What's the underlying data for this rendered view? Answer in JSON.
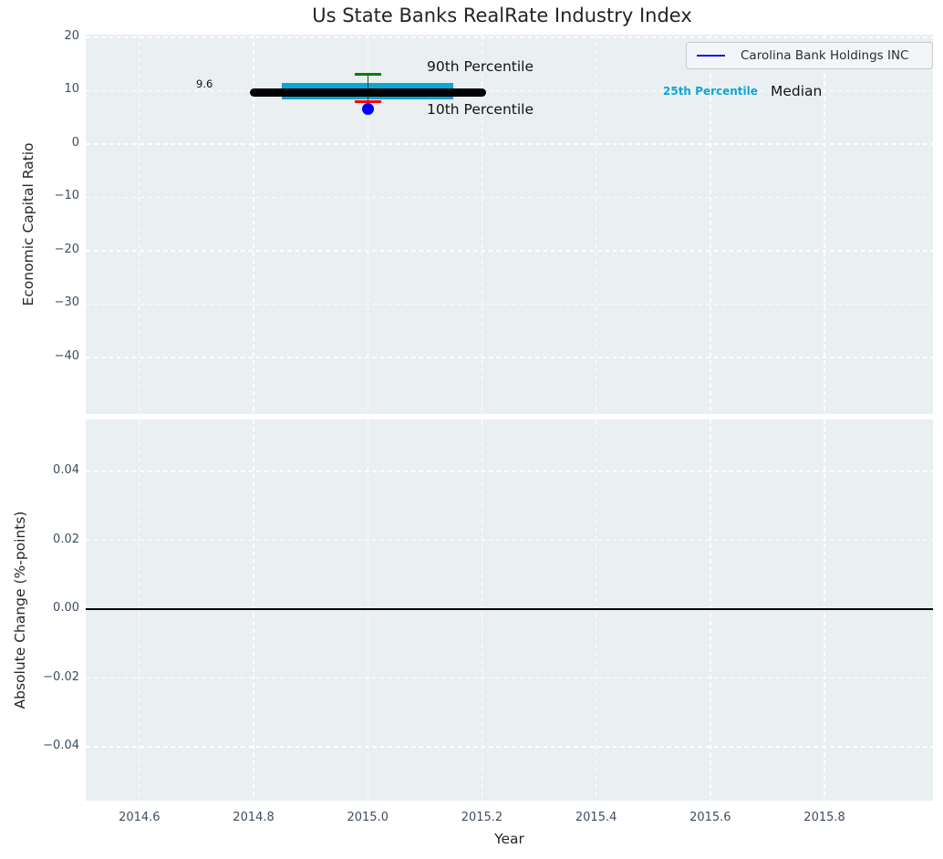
{
  "figure": {
    "title": "Us State Banks RealRate Industry Index",
    "plot_background": "#eaeff1",
    "grid_color": "#ffffff",
    "tick_label_color": "#3e4d62",
    "text_color": "#262626"
  },
  "legend": {
    "label": "Carolina Bank Holdings INC",
    "line_color": "#0f0fe8",
    "position": "upper-right"
  },
  "x_axis": {
    "label": "Year",
    "tick_values": [
      2014.6,
      2014.8,
      2015.0,
      2015.2,
      2015.4,
      2015.6,
      2015.8
    ],
    "tick_labels": [
      "2014.6",
      "2014.8",
      "2015.0",
      "2015.2",
      "2015.4",
      "2015.6",
      "2015.8"
    ]
  },
  "chart_data": [
    {
      "type": "box",
      "title": "Us State Banks RealRate Industry Index",
      "ylabel": "Economic Capital Ratio",
      "xlabel": "Year",
      "xlim": [
        2014.506,
        2015.99
      ],
      "ylim": [
        -50.6,
        20.5
      ],
      "grid": true,
      "legend_position": "upper-right",
      "ytick_values": [
        20,
        10,
        0,
        -10,
        -20,
        -30,
        -40
      ],
      "ytick_labels": [
        "20",
        "10",
        "0",
        "−10",
        "−20",
        "−30",
        "−40"
      ],
      "series": {
        "industry_box": {
          "x": 2015.0,
          "p90": 13.0,
          "p75": 11.5,
          "median": 9.6,
          "p25": 8.3,
          "p10": 7.9,
          "median_span": [
            2014.8,
            2015.2
          ],
          "box_span": [
            2014.85,
            2015.15
          ],
          "whisker_cap_halfwidth": 0.023
        },
        "company_point": {
          "name": "Carolina Bank Holdings INC",
          "x": 2015.0,
          "y": 6.5
        }
      },
      "annotations": {
        "median_value_label": "9.6",
        "p90_label": "90th Percentile",
        "p10_label": "10th Percentile",
        "p25_label": "25th Percentile",
        "median_label": "Median"
      },
      "colors": {
        "median": "#000000",
        "iqr_box": "#0da6d2",
        "p90_cap": "#008000",
        "p10_cap": "#ff0000",
        "whisker": "#3a3a3a",
        "company_point": "#0000ff"
      }
    },
    {
      "type": "line",
      "ylabel": "Absolute Change (%-points)",
      "xlabel": "Year",
      "xlim": [
        2014.506,
        2015.99
      ],
      "ylim": [
        -0.0556,
        0.0551
      ],
      "grid": true,
      "ytick_values": [
        0.04,
        0.02,
        0.0,
        -0.02,
        -0.04
      ],
      "ytick_labels": [
        "0.04",
        "0.02",
        "0.00",
        "−0.02",
        "−0.04"
      ],
      "series": [
        {
          "name": "zero-change-line",
          "y": 0.0,
          "color": "#000000"
        }
      ]
    }
  ]
}
